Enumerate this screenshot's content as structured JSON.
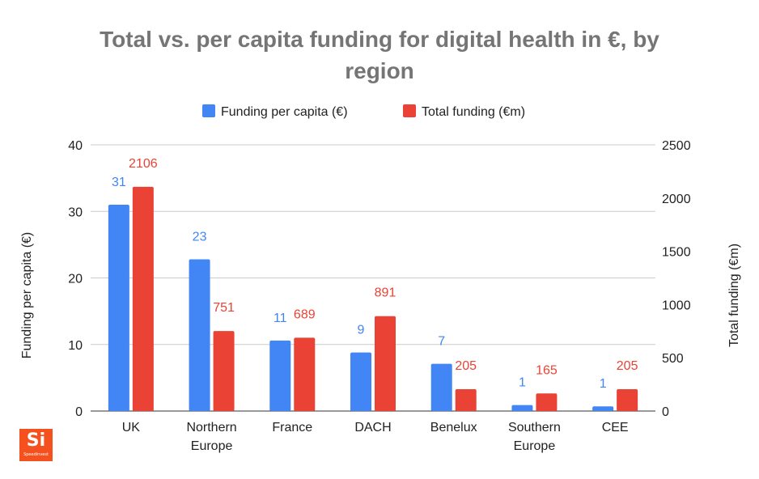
{
  "chart_data": {
    "type": "bar",
    "title": "Total vs. per capita funding for digital health in €, by region",
    "title_lines": [
      "Total vs. per capita funding for digital health in €, by",
      "region"
    ],
    "categories": [
      "UK",
      "Northern Europe",
      "France",
      "DACH",
      "Benelux",
      "Southern Europe",
      "CEE"
    ],
    "category_lines": [
      [
        "UK"
      ],
      [
        "Northern",
        "Europe"
      ],
      [
        "France"
      ],
      [
        "DACH"
      ],
      [
        "Benelux"
      ],
      [
        "Southern",
        "Europe"
      ],
      [
        "CEE"
      ]
    ],
    "series": [
      {
        "name": "Funding per capita (€)",
        "axis": "left",
        "color": "#4285f4",
        "values": [
          31,
          22.8,
          10.6,
          8.8,
          7.1,
          0.9,
          0.7
        ],
        "labels": [
          "31",
          "23",
          "11",
          "9",
          "7",
          "1",
          "1"
        ]
      },
      {
        "name": "Total funding (€m)",
        "axis": "right",
        "color": "#ea4335",
        "values": [
          2106,
          751,
          689,
          891,
          205,
          165,
          205
        ],
        "labels": [
          "2106",
          "751",
          "689",
          "891",
          "205",
          "165",
          "205"
        ]
      }
    ],
    "ylabel_left": "Funding per capita (€)",
    "ylabel_right": "Total funding (€m)",
    "ylim_left": [
      0,
      40
    ],
    "ylim_right": [
      0,
      2500
    ],
    "yticks_left": [
      0,
      10,
      20,
      30,
      40
    ],
    "yticks_right": [
      0,
      500,
      1000,
      1500,
      2000,
      2500
    ],
    "legend_position": "top-center",
    "grid": true
  },
  "branding": {
    "logo_mark": "Si",
    "logo_name": "Speedinvest",
    "logo_color": "#f4511e"
  }
}
